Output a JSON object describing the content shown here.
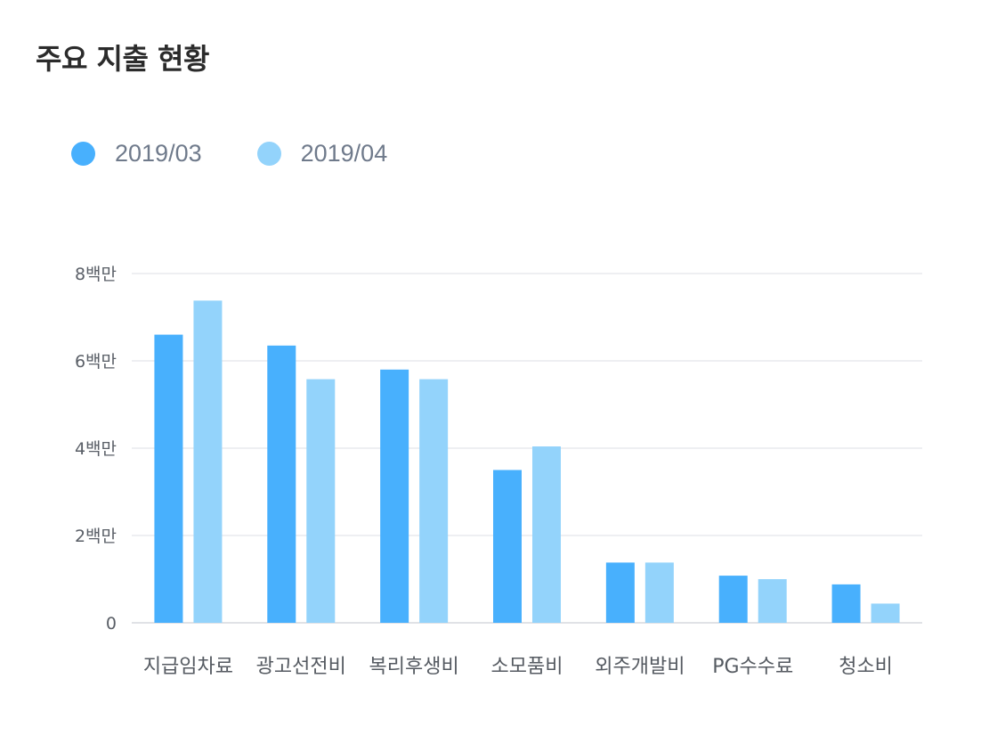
{
  "header": {
    "title": "주요 지출 현황"
  },
  "colors": {
    "series1": "#48b0fd",
    "series2": "#93d3fb",
    "grid": "#e8eaed",
    "axis": "#d6d9de"
  },
  "chart_data": {
    "type": "bar",
    "title": "주요 지출 현황",
    "categories": [
      "지급임차료",
      "광고선전비",
      "복리후생비",
      "소모품비",
      "외주개발비",
      "PG수수료",
      "청소비"
    ],
    "series": [
      {
        "name": "2019/03",
        "values": [
          6.6,
          6.35,
          5.8,
          3.5,
          1.38,
          1.08,
          0.88
        ]
      },
      {
        "name": "2019/04",
        "values": [
          7.38,
          5.58,
          5.58,
          4.04,
          1.38,
          1.0,
          0.44
        ]
      }
    ],
    "unit": "백만",
    "ylim": [
      0,
      8
    ],
    "yticks": [
      {
        "value": 0,
        "label": "0"
      },
      {
        "value": 2,
        "label": "2백만"
      },
      {
        "value": 4,
        "label": "4백만"
      },
      {
        "value": 6,
        "label": "6백만"
      },
      {
        "value": 8,
        "label": "8백만"
      }
    ],
    "grid": true,
    "legend_position": "top-left"
  }
}
